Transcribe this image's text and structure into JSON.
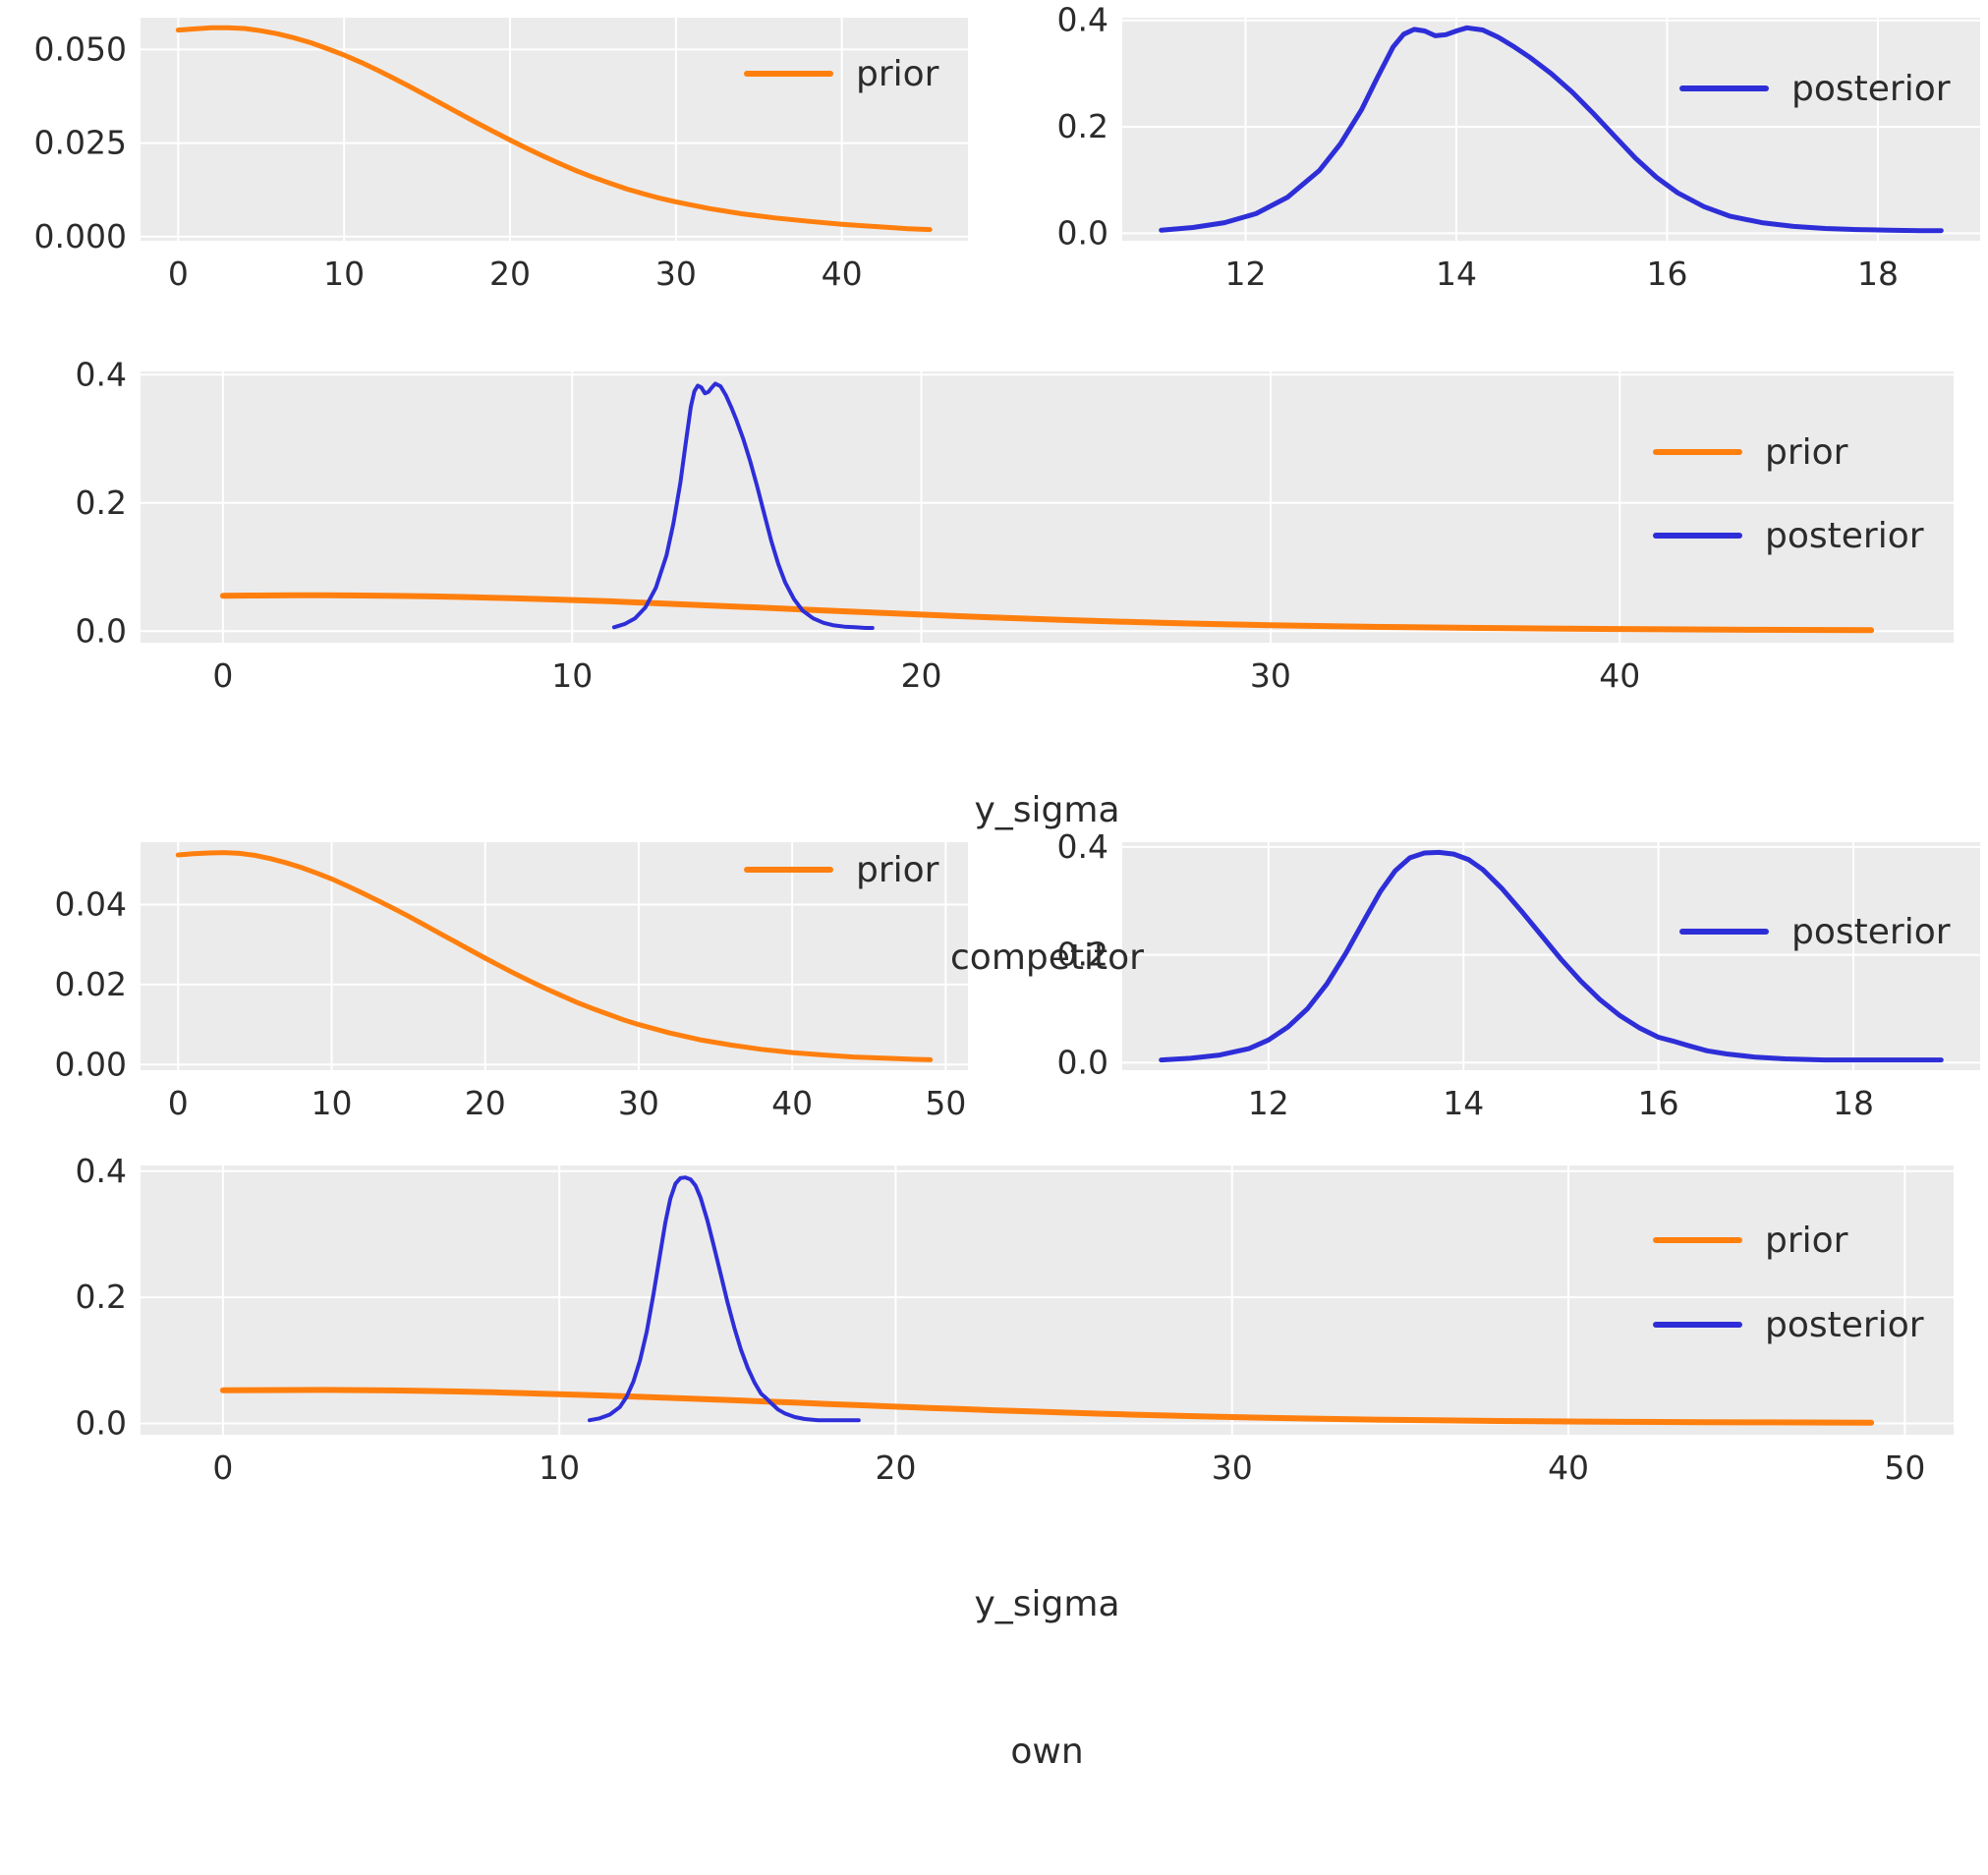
{
  "figure": {
    "panel_background": "#ebebeb",
    "grid_color": "#ffffff",
    "text_color": "#2b2b2b",
    "accent_orange": "#ff7f0e",
    "accent_blue": "#2e2ed8"
  },
  "chart_data": [
    {
      "id": "competitor-prior-small",
      "type": "line",
      "title": "",
      "xlabel": [],
      "ylabel": "",
      "grid": true,
      "legend_position": "upper right",
      "xlim": [
        -2.27,
        47.6
      ],
      "ylim": [
        -0.0011,
        0.0585
      ],
      "xticks": [
        0,
        10,
        20,
        30,
        40
      ],
      "xtick_labels": [
        "0",
        "10",
        "20",
        "30",
        "40"
      ],
      "yticks": [
        0.0,
        0.025,
        0.05
      ],
      "ytick_labels": [
        "0.000",
        "0.025",
        "0.050"
      ],
      "legend": [
        {
          "label": "prior",
          "color": "#ff7f0e"
        }
      ],
      "series": [
        {
          "name": "prior",
          "color": "#ff7f0e",
          "line_width": 5,
          "x": [
            0,
            1,
            2,
            3,
            4,
            5,
            6,
            7,
            8,
            9,
            10,
            11,
            12,
            13,
            14,
            15,
            16,
            17,
            18,
            19,
            20,
            21,
            22,
            23,
            24,
            25,
            26,
            27,
            28,
            29,
            30,
            32,
            34,
            36,
            38,
            40,
            42,
            44,
            45.3
          ],
          "y": [
            0.0552,
            0.0555,
            0.0558,
            0.0558,
            0.0556,
            0.055,
            0.0542,
            0.0531,
            0.0518,
            0.0502,
            0.0485,
            0.0466,
            0.0445,
            0.0423,
            0.04,
            0.0376,
            0.0352,
            0.0328,
            0.0304,
            0.0281,
            0.0258,
            0.0236,
            0.0215,
            0.0195,
            0.0176,
            0.0159,
            0.0143,
            0.0128,
            0.0115,
            0.0103,
            0.0093,
            0.0075,
            0.0061,
            0.005,
            0.0041,
            0.0033,
            0.0027,
            0.0021,
            0.0019
          ]
        }
      ]
    },
    {
      "id": "competitor-posterior-small",
      "type": "line",
      "title": "",
      "xlabel": [],
      "ylabel": "",
      "grid": true,
      "legend_position": "upper right",
      "xlim": [
        10.83,
        18.97
      ],
      "ylim": [
        -0.014,
        0.405
      ],
      "xticks": [
        12,
        14,
        16,
        18
      ],
      "xtick_labels": [
        "12",
        "14",
        "16",
        "18"
      ],
      "yticks": [
        0.0,
        0.2,
        0.4
      ],
      "ytick_labels": [
        "0.0",
        "0.2",
        "0.4"
      ],
      "legend": [
        {
          "label": "posterior",
          "color": "#2e2ed8"
        }
      ],
      "series": [
        {
          "name": "posterior",
          "color": "#2e2ed8",
          "line_width": 5,
          "x": [
            11.2,
            11.5,
            11.8,
            12.1,
            12.4,
            12.7,
            12.9,
            13.1,
            13.25,
            13.4,
            13.5,
            13.6,
            13.7,
            13.8,
            13.9,
            14.0,
            14.1,
            14.25,
            14.4,
            14.55,
            14.7,
            14.9,
            15.1,
            15.3,
            15.5,
            15.7,
            15.9,
            16.1,
            16.35,
            16.6,
            16.9,
            17.2,
            17.5,
            17.8,
            18.1,
            18.4,
            18.6
          ],
          "y": [
            0.006,
            0.011,
            0.02,
            0.037,
            0.068,
            0.118,
            0.168,
            0.232,
            0.292,
            0.35,
            0.374,
            0.383,
            0.38,
            0.371,
            0.373,
            0.38,
            0.386,
            0.382,
            0.368,
            0.35,
            0.33,
            0.3,
            0.265,
            0.225,
            0.183,
            0.141,
            0.105,
            0.076,
            0.05,
            0.032,
            0.02,
            0.013,
            0.009,
            0.007,
            0.006,
            0.005,
            0.005
          ]
        }
      ]
    },
    {
      "id": "competitor-joint",
      "type": "line",
      "title": "",
      "xlabel": [
        "y_sigma",
        "competitor"
      ],
      "ylabel": "",
      "grid": true,
      "legend_position": "upper right",
      "xlim": [
        -2.36,
        49.56
      ],
      "ylim": [
        -0.018,
        0.405
      ],
      "xticks": [
        0,
        10,
        20,
        30,
        40
      ],
      "xtick_labels": [
        "0",
        "10",
        "20",
        "30",
        "40"
      ],
      "yticks": [
        0.0,
        0.2,
        0.4
      ],
      "ytick_labels": [
        "0.0",
        "0.2",
        "0.4"
      ],
      "legend": [
        {
          "label": "prior",
          "color": "#ff7f0e"
        },
        {
          "label": "posterior",
          "color": "#2e2ed8"
        }
      ],
      "series": [
        {
          "name": "prior",
          "color": "#ff7f0e",
          "line_width": 6,
          "x": [
            0,
            1,
            2,
            3,
            4,
            5,
            6,
            7,
            8,
            9,
            10,
            11,
            12,
            13,
            14,
            15,
            16,
            17,
            18,
            19,
            20,
            21,
            22,
            23,
            24,
            25,
            26,
            27,
            28,
            29,
            30,
            32,
            34,
            36,
            38,
            40,
            42,
            44,
            46,
            47.2
          ],
          "y": [
            0.0552,
            0.0555,
            0.0558,
            0.0558,
            0.0556,
            0.055,
            0.0542,
            0.0531,
            0.0518,
            0.0502,
            0.0485,
            0.0466,
            0.0445,
            0.0423,
            0.04,
            0.0376,
            0.0352,
            0.0328,
            0.0304,
            0.0281,
            0.0258,
            0.0236,
            0.0215,
            0.0195,
            0.0176,
            0.0159,
            0.0143,
            0.0128,
            0.0115,
            0.0103,
            0.0093,
            0.0075,
            0.0061,
            0.005,
            0.0041,
            0.0033,
            0.0027,
            0.0021,
            0.0017,
            0.0015
          ]
        },
        {
          "name": "posterior",
          "color": "#2e2ed8",
          "line_width": 4,
          "x": [
            11.2,
            11.5,
            11.8,
            12.1,
            12.4,
            12.7,
            12.9,
            13.1,
            13.25,
            13.4,
            13.5,
            13.6,
            13.7,
            13.8,
            13.9,
            14.0,
            14.1,
            14.25,
            14.4,
            14.55,
            14.7,
            14.9,
            15.1,
            15.3,
            15.5,
            15.7,
            15.9,
            16.1,
            16.35,
            16.6,
            16.9,
            17.2,
            17.5,
            17.8,
            18.1,
            18.4,
            18.6
          ],
          "y": [
            0.006,
            0.011,
            0.02,
            0.037,
            0.068,
            0.118,
            0.168,
            0.232,
            0.292,
            0.35,
            0.374,
            0.383,
            0.38,
            0.371,
            0.373,
            0.38,
            0.386,
            0.382,
            0.368,
            0.35,
            0.33,
            0.3,
            0.265,
            0.225,
            0.183,
            0.141,
            0.105,
            0.076,
            0.05,
            0.032,
            0.02,
            0.013,
            0.009,
            0.007,
            0.006,
            0.005,
            0.005
          ]
        }
      ]
    },
    {
      "id": "own-prior-small",
      "type": "line",
      "title": "",
      "xlabel": [],
      "ylabel": "",
      "grid": true,
      "legend_position": "upper right",
      "xlim": [
        -2.45,
        51.45
      ],
      "ylim": [
        -0.0014,
        0.0556
      ],
      "xticks": [
        0,
        10,
        20,
        30,
        40,
        50
      ],
      "xtick_labels": [
        "0",
        "10",
        "20",
        "30",
        "40",
        "50"
      ],
      "yticks": [
        0.0,
        0.02,
        0.04
      ],
      "ytick_labels": [
        "0.00",
        "0.02",
        "0.04"
      ],
      "legend": [
        {
          "label": "prior",
          "color": "#ff7f0e"
        }
      ],
      "series": [
        {
          "name": "prior",
          "color": "#ff7f0e",
          "line_width": 5,
          "x": [
            0,
            1,
            2,
            3,
            4,
            5,
            6,
            7,
            8,
            9,
            10,
            11,
            12,
            13,
            14,
            15,
            16,
            17,
            18,
            19,
            20,
            21,
            22,
            23,
            24,
            25,
            26,
            27,
            28,
            29,
            30,
            32,
            34,
            36,
            38,
            40,
            42,
            44,
            46,
            48,
            49
          ],
          "y": [
            0.0524,
            0.0527,
            0.0529,
            0.053,
            0.0528,
            0.0523,
            0.0515,
            0.0505,
            0.0493,
            0.0479,
            0.0464,
            0.0447,
            0.0429,
            0.041,
            0.0391,
            0.0371,
            0.035,
            0.0329,
            0.0308,
            0.0287,
            0.0266,
            0.0246,
            0.0226,
            0.0207,
            0.0189,
            0.0172,
            0.0155,
            0.014,
            0.0126,
            0.0112,
            0.01,
            0.0079,
            0.0062,
            0.0049,
            0.0038,
            0.003,
            0.0024,
            0.0019,
            0.0016,
            0.0013,
            0.0012
          ]
        }
      ]
    },
    {
      "id": "own-posterior-small",
      "type": "line",
      "title": "",
      "xlabel": [],
      "ylabel": "",
      "grid": true,
      "legend_position": "upper right",
      "xlim": [
        10.5,
        19.3
      ],
      "ylim": [
        -0.014,
        0.409
      ],
      "xticks": [
        12,
        14,
        16,
        18
      ],
      "xtick_labels": [
        "12",
        "14",
        "16",
        "18"
      ],
      "yticks": [
        0.0,
        0.2,
        0.4
      ],
      "ytick_labels": [
        "0.0",
        "0.2",
        "0.4"
      ],
      "legend": [
        {
          "label": "posterior",
          "color": "#2e2ed8"
        }
      ],
      "series": [
        {
          "name": "posterior",
          "color": "#2e2ed8",
          "line_width": 5,
          "x": [
            10.9,
            11.2,
            11.5,
            11.8,
            12.0,
            12.2,
            12.4,
            12.6,
            12.8,
            13.0,
            13.15,
            13.3,
            13.45,
            13.6,
            13.75,
            13.9,
            14.05,
            14.2,
            14.4,
            14.6,
            14.8,
            15.0,
            15.2,
            15.4,
            15.6,
            15.8,
            16.0,
            16.15,
            16.3,
            16.5,
            16.7,
            17.0,
            17.3,
            17.7,
            18.1,
            18.5,
            18.9
          ],
          "y": [
            0.005,
            0.008,
            0.014,
            0.026,
            0.042,
            0.066,
            0.1,
            0.146,
            0.205,
            0.27,
            0.318,
            0.356,
            0.38,
            0.389,
            0.39,
            0.387,
            0.377,
            0.358,
            0.322,
            0.28,
            0.236,
            0.192,
            0.152,
            0.117,
            0.088,
            0.065,
            0.047,
            0.04,
            0.032,
            0.022,
            0.016,
            0.01,
            0.007,
            0.005,
            0.005,
            0.005,
            0.005
          ]
        }
      ]
    },
    {
      "id": "own-joint",
      "type": "line",
      "title": "",
      "xlabel": [
        "y_sigma",
        "own"
      ],
      "ylabel": "",
      "grid": true,
      "legend_position": "upper right",
      "xlim": [
        -2.45,
        51.45
      ],
      "ylim": [
        -0.018,
        0.409
      ],
      "xticks": [
        0,
        10,
        20,
        30,
        40,
        50
      ],
      "xtick_labels": [
        "0",
        "10",
        "20",
        "30",
        "40",
        "50"
      ],
      "yticks": [
        0.0,
        0.2,
        0.4
      ],
      "ytick_labels": [
        "0.0",
        "0.2",
        "0.4"
      ],
      "legend": [
        {
          "label": "prior",
          "color": "#ff7f0e"
        },
        {
          "label": "posterior",
          "color": "#2e2ed8"
        }
      ],
      "series": [
        {
          "name": "prior",
          "color": "#ff7f0e",
          "line_width": 6,
          "x": [
            0,
            1,
            2,
            3,
            4,
            5,
            6,
            7,
            8,
            9,
            10,
            11,
            12,
            13,
            14,
            15,
            16,
            17,
            18,
            19,
            20,
            21,
            22,
            23,
            24,
            25,
            26,
            27,
            28,
            29,
            30,
            32,
            34,
            36,
            38,
            40,
            42,
            44,
            46,
            48,
            49
          ],
          "y": [
            0.0524,
            0.0527,
            0.0529,
            0.053,
            0.0528,
            0.0523,
            0.0515,
            0.0505,
            0.0493,
            0.0479,
            0.0464,
            0.0447,
            0.0429,
            0.041,
            0.0391,
            0.0371,
            0.035,
            0.0329,
            0.0308,
            0.0287,
            0.0266,
            0.0246,
            0.0226,
            0.0207,
            0.0189,
            0.0172,
            0.0155,
            0.014,
            0.0126,
            0.0112,
            0.01,
            0.0079,
            0.0062,
            0.0049,
            0.0038,
            0.003,
            0.0024,
            0.0019,
            0.0016,
            0.0013,
            0.0012
          ]
        },
        {
          "name": "posterior",
          "color": "#2e2ed8",
          "line_width": 4,
          "x": [
            10.9,
            11.2,
            11.5,
            11.8,
            12.0,
            12.2,
            12.4,
            12.6,
            12.8,
            13.0,
            13.15,
            13.3,
            13.45,
            13.6,
            13.75,
            13.9,
            14.05,
            14.2,
            14.4,
            14.6,
            14.8,
            15.0,
            15.2,
            15.4,
            15.6,
            15.8,
            16.0,
            16.15,
            16.3,
            16.5,
            16.7,
            17.0,
            17.3,
            17.7,
            18.1,
            18.5,
            18.9
          ],
          "y": [
            0.005,
            0.008,
            0.014,
            0.026,
            0.042,
            0.066,
            0.1,
            0.146,
            0.205,
            0.27,
            0.318,
            0.356,
            0.38,
            0.389,
            0.39,
            0.387,
            0.377,
            0.358,
            0.322,
            0.28,
            0.236,
            0.192,
            0.152,
            0.117,
            0.088,
            0.065,
            0.047,
            0.04,
            0.032,
            0.022,
            0.016,
            0.01,
            0.007,
            0.005,
            0.005,
            0.005,
            0.005
          ]
        }
      ]
    }
  ]
}
